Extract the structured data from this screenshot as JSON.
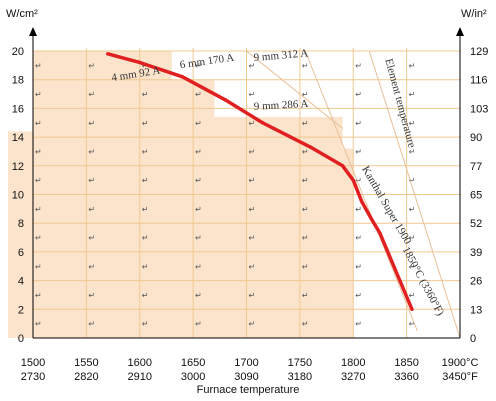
{
  "chart_data": {
    "type": "line",
    "y_left_unit": "W/cm²",
    "y_right_unit": "W/in²",
    "xlabel": "Furnace temperature",
    "x_ticks_c": [
      "1500",
      "1550",
      "1600",
      "1650",
      "1700",
      "1750",
      "1800",
      "1850",
      "1900°C"
    ],
    "x_ticks_f": [
      "2730",
      "2820",
      "2910",
      "3000",
      "3090",
      "3180",
      "3270",
      "3360",
      "3450°F"
    ],
    "xlim": [
      1500,
      1900
    ],
    "y_left_ticks": [
      "0",
      "2",
      "4",
      "6",
      "8",
      "10",
      "12",
      "14",
      "16",
      "18",
      "20"
    ],
    "y_right_ticks": [
      "0",
      "13",
      "26",
      "39",
      "52",
      "65",
      "77",
      "90",
      "103",
      "116",
      "129"
    ],
    "ylim": [
      0,
      20
    ],
    "grid": true,
    "grid_color": "#f0c890",
    "region_color": "#fce4cc",
    "series_color": "#e02020",
    "series": [
      {
        "x": [
          1570,
          1600,
          1640,
          1680,
          1715,
          1760,
          1790,
          1800,
          1808,
          1817,
          1825,
          1838,
          1855
        ],
        "y": [
          19.8,
          19.2,
          18.2,
          16.6,
          15.0,
          13.3,
          12.0,
          11.0,
          9.5,
          8.3,
          7.3,
          5.0,
          2.0
        ]
      }
    ],
    "annotations": [
      {
        "text": "4 mm  92 A",
        "x": 1574,
        "y": 17.9,
        "rotate": -9
      },
      {
        "text": "6 mm  170 A",
        "x": 1638,
        "y": 18.8,
        "rotate": -8
      },
      {
        "text": "9 mm  312 A",
        "x": 1707,
        "y": 19.3,
        "rotate": -5
      },
      {
        "text": "9 mm  286 A",
        "x": 1707,
        "y": 15.9,
        "rotate": -3
      },
      {
        "text": "Element temperature",
        "x": 1830,
        "y": 19.4,
        "rotate": 75
      },
      {
        "text": "Kanthal Super 1900",
        "x": 1808,
        "y": 11.8,
        "rotate": 60
      },
      {
        "text": "1850°C (3360°F)",
        "x": 1846,
        "y": 6.2,
        "rotate": 62
      }
    ]
  }
}
